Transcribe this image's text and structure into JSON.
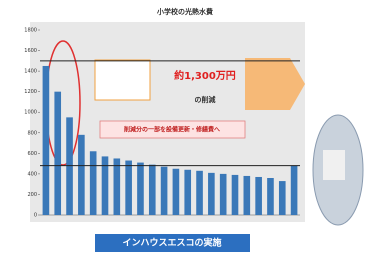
{
  "chart_data": {
    "type": "bar",
    "title": "小学校の光熱水費",
    "categories": [
      null,
      null,
      null,
      null,
      null,
      null,
      null,
      null,
      null,
      null,
      null,
      null,
      null,
      null,
      null,
      null,
      null,
      null,
      null,
      null,
      null,
      null
    ],
    "values": [
      1450,
      1200,
      950,
      780,
      620,
      570,
      550,
      530,
      510,
      490,
      470,
      450,
      440,
      430,
      410,
      400,
      390,
      380,
      370,
      360,
      330,
      480
    ],
    "color": "#3a78b8",
    "ylim": [
      0,
      1800
    ],
    "yticks": [
      0,
      200,
      400,
      600,
      800,
      1000,
      1200,
      1400,
      1600,
      1800
    ],
    "reference_lines": [
      1500,
      480
    ],
    "annotations": [
      "約1,300万円",
      "の削減",
      "削減分の一部を設備更新・修繕費へ"
    ],
    "banner": "インハウスエスコの実施"
  }
}
